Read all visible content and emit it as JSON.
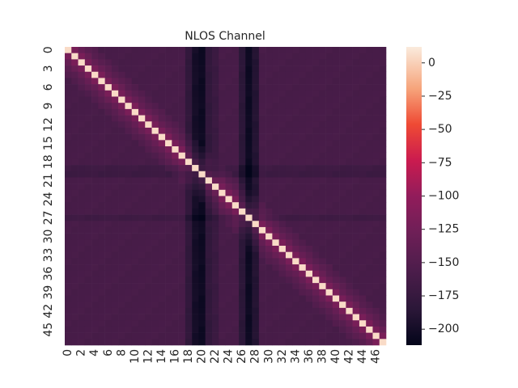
{
  "chart_data": {
    "type": "heatmap",
    "title": "NLOS Channel",
    "xlabel": "",
    "ylabel": "",
    "n": 48,
    "x_tick_labels": [
      "0",
      "2",
      "4",
      "6",
      "8",
      "10",
      "12",
      "14",
      "16",
      "18",
      "20",
      "22",
      "24",
      "26",
      "28",
      "30",
      "32",
      "34",
      "36",
      "38",
      "40",
      "42",
      "44",
      "46"
    ],
    "y_tick_labels": [
      "0",
      "3",
      "6",
      "9",
      "12",
      "15",
      "18",
      "21",
      "24",
      "27",
      "30",
      "33",
      "36",
      "39",
      "42",
      "45"
    ],
    "colorbar": {
      "range": [
        -212,
        12
      ],
      "ticks": [
        "0",
        "−25",
        "−50",
        "−75",
        "−100",
        "−125",
        "−150",
        "−175",
        "−200"
      ],
      "tick_values": [
        0,
        -25,
        -50,
        -75,
        -100,
        -125,
        -150,
        -175,
        -200
      ],
      "colormap": "rocket"
    },
    "diagonal_value": 5,
    "cell_value_model": {
      "base_offdiag": -160,
      "diagonal_neighborhood_boost": [
        [
          1,
          40
        ],
        [
          2,
          25
        ],
        [
          3,
          15
        ],
        [
          4,
          8
        ]
      ],
      "dark_columns": {
        "18": -20,
        "19": -40,
        "20": -45,
        "21": -20,
        "22": -12,
        "26": -25,
        "27": -45,
        "28": -30
      },
      "dark_rows": {
        "19": -8,
        "20": -10,
        "27": -8
      }
    },
    "grid": false,
    "legend": "colorbar-right"
  }
}
